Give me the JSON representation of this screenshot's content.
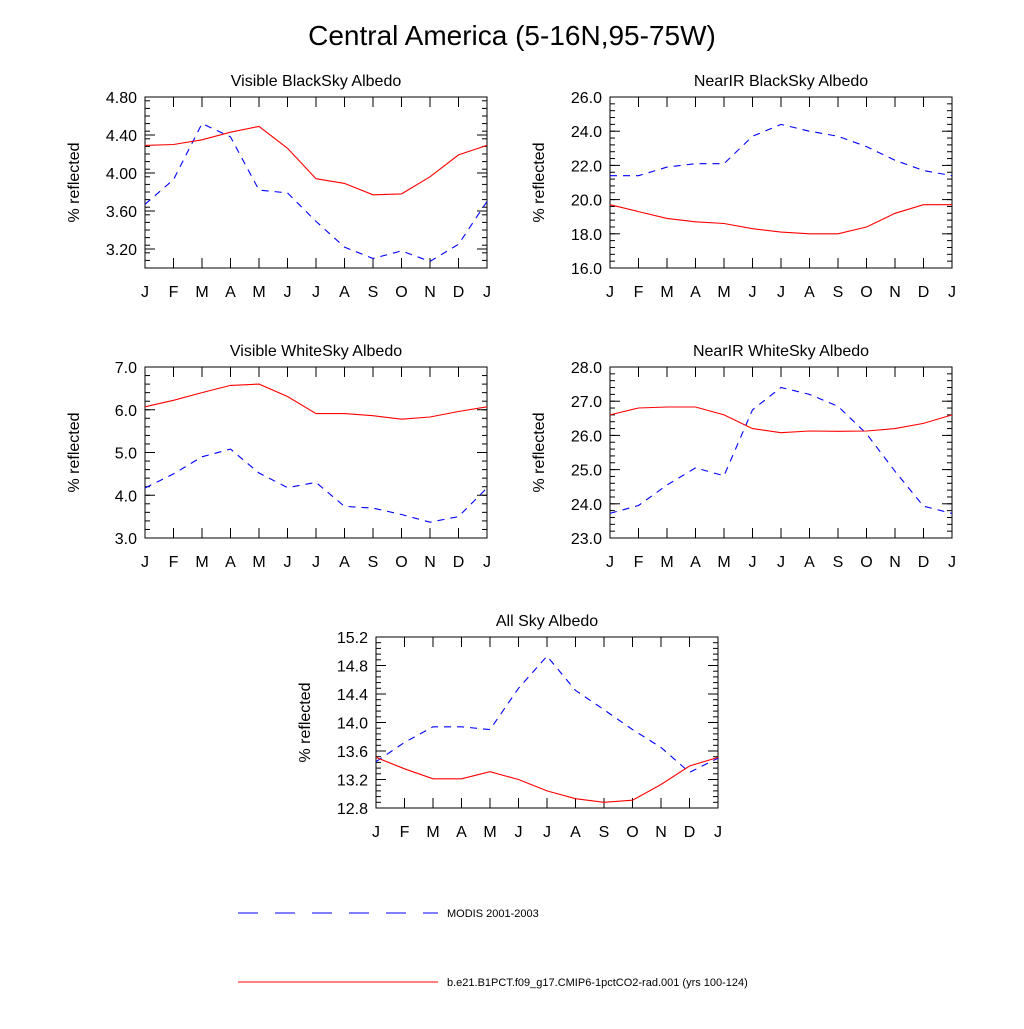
{
  "title": "Central America (5-16N,95-75W)",
  "colors": {
    "modis": "#0000ff",
    "model": "#ff0000",
    "axis": "#000000"
  },
  "legend": {
    "placement": "bottom",
    "entries": [
      {
        "key": "modis",
        "label": "MODIS 2001-2003",
        "style": "dashed"
      },
      {
        "key": "model",
        "label": "b.e21.B1PCT.f09_g17.CMIP6-1pctCO2-rad.001 (yrs 100-124)",
        "style": "solid"
      }
    ]
  },
  "chart_data": [
    {
      "type": "line",
      "title": "Visible BlackSky Albedo",
      "ylabel": "% reflected",
      "categories": [
        "J",
        "F",
        "M",
        "A",
        "M",
        "J",
        "J",
        "A",
        "S",
        "O",
        "N",
        "D",
        "J"
      ],
      "ylim": [
        3.0,
        4.8
      ],
      "yticks": [
        "3.20",
        "3.60",
        "4.00",
        "4.40",
        "4.80"
      ],
      "yticks_values": [
        3.2,
        3.6,
        4.0,
        4.4,
        4.8
      ],
      "series": [
        {
          "key": "modis",
          "name": "MODIS 2001-2003",
          "values": [
            3.67,
            3.93,
            4.52,
            4.38,
            3.82,
            3.79,
            3.49,
            3.22,
            3.1,
            3.18,
            3.07,
            3.25,
            3.7
          ]
        },
        {
          "key": "model",
          "name": "b.e21.B1PCT.f09_g17.CMIP6-1pctCO2-rad.001 (yrs 100-124)",
          "values": [
            4.29,
            4.3,
            4.35,
            4.43,
            4.49,
            4.26,
            3.94,
            3.89,
            3.77,
            3.78,
            3.96,
            4.19,
            4.29
          ]
        }
      ]
    },
    {
      "type": "line",
      "title": "NearIR BlackSky Albedo",
      "ylabel": "% reflected",
      "categories": [
        "J",
        "F",
        "M",
        "A",
        "M",
        "J",
        "J",
        "A",
        "S",
        "O",
        "N",
        "D",
        "J"
      ],
      "ylim": [
        16.0,
        26.0
      ],
      "yticks": [
        "16.0",
        "18.0",
        "20.0",
        "22.0",
        "24.0",
        "26.0"
      ],
      "yticks_values": [
        16,
        18,
        20,
        22,
        24,
        26
      ],
      "series": [
        {
          "key": "modis",
          "name": "MODIS 2001-2003",
          "values": [
            21.4,
            21.4,
            21.9,
            22.1,
            22.1,
            23.7,
            24.4,
            24.0,
            23.7,
            23.1,
            22.3,
            21.7,
            21.4
          ]
        },
        {
          "key": "model",
          "name": "b.e21.B1PCT.f09_g17.CMIP6-1pctCO2-rad.001 (yrs 100-124)",
          "values": [
            19.7,
            19.3,
            18.9,
            18.7,
            18.6,
            18.3,
            18.1,
            18.0,
            18.0,
            18.4,
            19.2,
            19.7,
            19.7
          ]
        }
      ]
    },
    {
      "type": "line",
      "title": "Visible WhiteSky Albedo",
      "ylabel": "% reflected",
      "categories": [
        "J",
        "F",
        "M",
        "A",
        "M",
        "J",
        "J",
        "A",
        "S",
        "O",
        "N",
        "D",
        "J"
      ],
      "ylim": [
        3.0,
        7.0
      ],
      "yticks": [
        "3.0",
        "4.0",
        "5.0",
        "6.0",
        "7.0"
      ],
      "yticks_values": [
        3,
        4,
        5,
        6,
        7
      ],
      "series": [
        {
          "key": "modis",
          "name": "MODIS 2001-2003",
          "values": [
            4.17,
            4.5,
            4.9,
            5.08,
            4.52,
            4.18,
            4.3,
            3.74,
            3.7,
            3.55,
            3.37,
            3.5,
            4.17
          ]
        },
        {
          "key": "model",
          "name": "b.e21.B1PCT.f09_g17.CMIP6-1pctCO2-rad.001 (yrs 100-124)",
          "values": [
            6.07,
            6.22,
            6.4,
            6.57,
            6.6,
            6.31,
            5.91,
            5.91,
            5.86,
            5.78,
            5.83,
            5.96,
            6.07
          ]
        }
      ]
    },
    {
      "type": "line",
      "title": "NearIR WhiteSky Albedo",
      "ylabel": "% reflected",
      "categories": [
        "J",
        "F",
        "M",
        "A",
        "M",
        "J",
        "J",
        "A",
        "S",
        "O",
        "N",
        "D",
        "J"
      ],
      "ylim": [
        23.0,
        28.0
      ],
      "yticks": [
        "23.0",
        "24.0",
        "25.0",
        "26.0",
        "27.0",
        "28.0"
      ],
      "yticks_values": [
        23,
        24,
        25,
        26,
        27,
        28
      ],
      "series": [
        {
          "key": "modis",
          "name": "MODIS 2001-2003",
          "values": [
            23.72,
            23.95,
            24.55,
            25.05,
            24.82,
            26.75,
            27.4,
            27.2,
            26.85,
            26.05,
            24.95,
            23.93,
            23.72
          ]
        },
        {
          "key": "model",
          "name": "b.e21.B1PCT.f09_g17.CMIP6-1pctCO2-rad.001 (yrs 100-124)",
          "values": [
            26.6,
            26.8,
            26.83,
            26.83,
            26.6,
            26.2,
            26.08,
            26.13,
            26.12,
            26.13,
            26.2,
            26.35,
            26.6
          ]
        }
      ]
    },
    {
      "type": "line",
      "title": "All Sky Albedo",
      "ylabel": "% reflected",
      "categories": [
        "J",
        "F",
        "M",
        "A",
        "M",
        "J",
        "J",
        "A",
        "S",
        "O",
        "N",
        "D",
        "J"
      ],
      "ylim": [
        12.8,
        15.2
      ],
      "yticks": [
        "12.8",
        "13.2",
        "13.6",
        "14.0",
        "14.4",
        "14.8",
        "15.2"
      ],
      "yticks_values": [
        12.8,
        13.2,
        13.6,
        14.0,
        14.4,
        14.8,
        15.2
      ],
      "series": [
        {
          "key": "modis",
          "name": "MODIS 2001-2003",
          "values": [
            13.45,
            13.72,
            13.94,
            13.94,
            13.9,
            14.48,
            14.93,
            14.45,
            14.18,
            13.9,
            13.65,
            13.3,
            13.5
          ]
        },
        {
          "key": "model",
          "name": "b.e21.B1PCT.f09_g17.CMIP6-1pctCO2-rad.001 (yrs 100-124)",
          "values": [
            13.51,
            13.35,
            13.21,
            13.21,
            13.31,
            13.2,
            13.04,
            12.93,
            12.88,
            12.91,
            13.13,
            13.39,
            13.51
          ]
        }
      ]
    }
  ]
}
